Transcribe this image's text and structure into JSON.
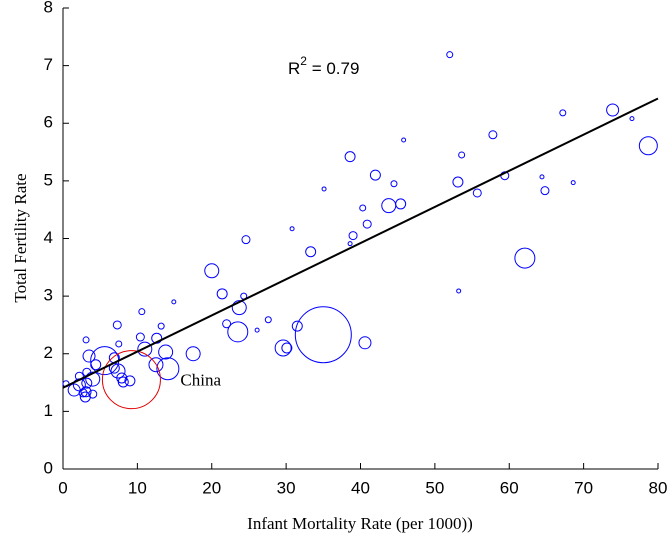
{
  "chart_data": {
    "type": "bubble",
    "xlabel": "Infant Mortality Rate (per 1000))",
    "ylabel": "Total Fertility Rate",
    "annotation": {
      "text": "R",
      "superscript": "2",
      "suffix": " = 0.79"
    },
    "xlim": [
      0,
      80
    ],
    "xticks": [
      0,
      10,
      20,
      30,
      40,
      50,
      60,
      70,
      80
    ],
    "ylim": [
      0,
      8
    ],
    "yticks": [
      0,
      1,
      2,
      3,
      4,
      5,
      6,
      7,
      8
    ],
    "series": [
      {
        "color": "#0000ff",
        "x": [
          52.0,
          73.9,
          67.2,
          76.5,
          78.7,
          57.8,
          45.8,
          38.6,
          53.6,
          42.0,
          59.4,
          64.4,
          44.5,
          53.1,
          68.6,
          35.1,
          64.8,
          55.7,
          43.8,
          45.4,
          40.3,
          40.9,
          30.8,
          39.0,
          24.6,
          38.6,
          33.3,
          62.1,
          20.0,
          21.4,
          24.3,
          53.2,
          14.9,
          23.7,
          10.6,
          27.6,
          13.2,
          22.0,
          7.3,
          31.5,
          26.1,
          23.5,
          3.1,
          12.6,
          10.4,
          35.0,
          40.6,
          7.5,
          11.0,
          29.6,
          30.1,
          13.8,
          17.5,
          3.5,
          6.9,
          5.6,
          4.4,
          12.5,
          6.9,
          14.1,
          7.4,
          3.2,
          2.2,
          7.9,
          4.0,
          9.0,
          8.1,
          2.2,
          3.2,
          1.5,
          3.1,
          2.7,
          4.0,
          3.0,
          0.4
        ],
        "values": [
          7.19,
          6.23,
          6.18,
          6.08,
          5.61,
          5.8,
          5.71,
          5.42,
          5.45,
          5.1,
          5.09,
          5.07,
          4.95,
          4.98,
          4.97,
          4.86,
          4.83,
          4.79,
          4.57,
          4.6,
          4.53,
          4.25,
          4.17,
          4.05,
          3.98,
          3.91,
          3.77,
          3.66,
          3.44,
          3.04,
          3.0,
          3.09,
          2.9,
          2.8,
          2.73,
          2.59,
          2.48,
          2.52,
          2.5,
          2.48,
          2.41,
          2.38,
          2.24,
          2.27,
          2.29,
          2.33,
          2.19,
          2.17,
          2.08,
          2.1,
          2.1,
          2.03,
          2.0,
          1.96,
          1.93,
          1.88,
          1.81,
          1.81,
          1.75,
          1.74,
          1.7,
          1.68,
          1.61,
          1.58,
          1.56,
          1.53,
          1.51,
          1.46,
          1.49,
          1.37,
          1.34,
          1.32,
          1.3,
          1.25,
          1.48
        ],
        "sizes": [
          9,
          36,
          9,
          4,
          81,
          16,
          4,
          25,
          9,
          25,
          16,
          4,
          9,
          25,
          4,
          4,
          16,
          16,
          49,
          25,
          9,
          16,
          4,
          16,
          16,
          4,
          25,
          100,
          49,
          25,
          9,
          4,
          4,
          49,
          9,
          9,
          9,
          16,
          16,
          25,
          4,
          100,
          9,
          25,
          16,
          784,
          36,
          9,
          49,
          64,
          25,
          49,
          49,
          36,
          25,
          196,
          25,
          49,
          25,
          121,
          49,
          16,
          16,
          25,
          49,
          25,
          25,
          36,
          25,
          36,
          25,
          16,
          16,
          25,
          9
        ]
      },
      {
        "name": "China",
        "color": "#e00000",
        "x": [
          9.2
        ],
        "values": [
          1.55
        ],
        "sizes": [
          841
        ]
      }
    ],
    "fit": {
      "color": "#000000",
      "x": [
        0,
        80
      ],
      "values": [
        1.41,
        6.43
      ]
    }
  }
}
